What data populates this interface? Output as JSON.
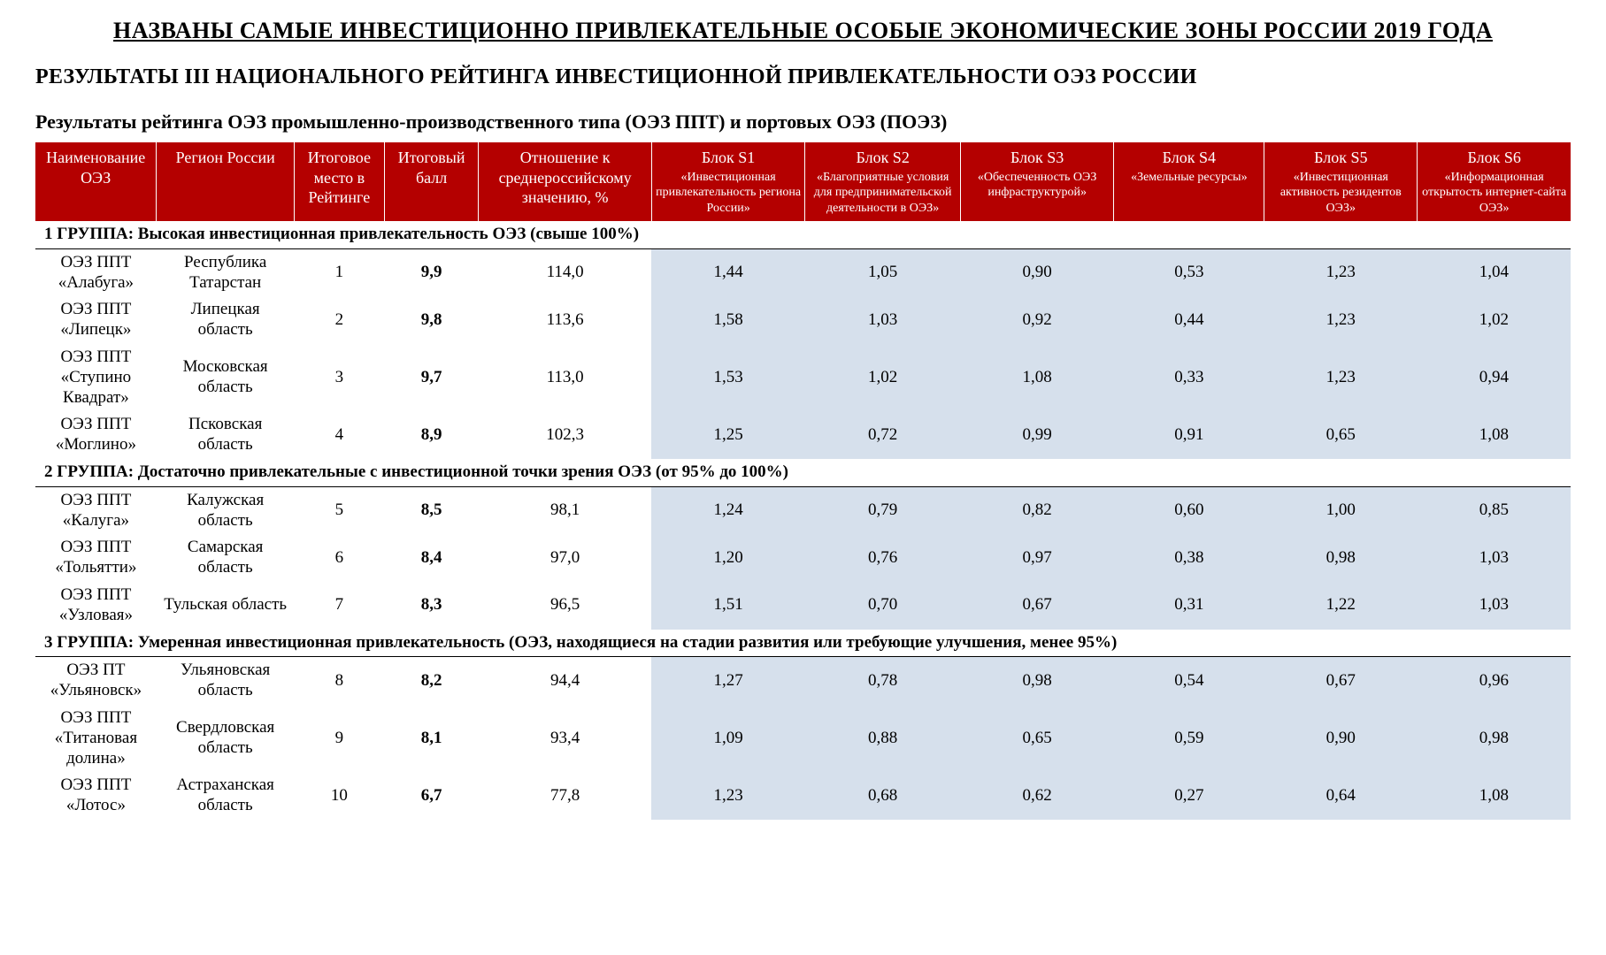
{
  "title_main": "НАЗВАНЫ САМЫЕ ИНВЕСТИЦИОННО ПРИВЛЕКАТЕЛЬНЫЕ ОСОБЫЕ ЭКОНОМИЧЕСКИЕ ЗОНЫ РОССИИ 2019 ГОДА",
  "subtitle": "РЕЗУЛЬТАТЫ III НАЦИОНАЛЬНОГО РЕЙТИНГА ИНВЕСТИЦИОННОЙ ПРИВЛЕКАТЕЛЬНОСТИ ОЭЗ РОССИИ",
  "section_title": "Результаты рейтинга ОЭЗ промышленно-производственного типа (ОЭЗ ППТ) и портовых ОЭЗ (ПОЭЗ)",
  "columns": [
    {
      "main": "Наименование ОЭЗ"
    },
    {
      "main": "Регион России"
    },
    {
      "main": "Итоговое место в Рейтинге"
    },
    {
      "main": "Итоговый балл"
    },
    {
      "main": "Отношение к среднероссийскому значению, %"
    },
    {
      "main": "Блок S1",
      "sub": "«Инвестиционная привлекательность региона России»"
    },
    {
      "main": "Блок S2",
      "sub": "«Благоприятные условия для предпринимательской деятельности в ОЭЗ»"
    },
    {
      "main": "Блок S3",
      "sub": "«Обеспеченность ОЭЗ инфраструктурой»"
    },
    {
      "main": "Блок S4",
      "sub": "«Земельные ресурсы»"
    },
    {
      "main": "Блок S5",
      "sub": "«Инвестиционная активность резидентов ОЭЗ»"
    },
    {
      "main": "Блок S6",
      "sub": "«Информационная открытость интернет-сайта ОЭЗ»"
    }
  ],
  "groups": [
    {
      "label": "1 ГРУППА:  Высокая инвестиционная привлекательность ОЭЗ (свыше 100%)",
      "rows": [
        {
          "name": "ОЭЗ ППТ «Алабуга»",
          "region": "Республика Татарстан",
          "place": "1",
          "score": "9,9",
          "ratio": "114,0",
          "s1": "1,44",
          "s2": "1,05",
          "s3": "0,90",
          "s4": "0,53",
          "s5": "1,23",
          "s6": "1,04"
        },
        {
          "name": "ОЭЗ ППТ «Липецк»",
          "region": "Липецкая область",
          "place": "2",
          "score": "9,8",
          "ratio": "113,6",
          "s1": "1,58",
          "s2": "1,03",
          "s3": "0,92",
          "s4": "0,44",
          "s5": "1,23",
          "s6": "1,02"
        },
        {
          "name": "ОЭЗ ППТ «Ступино Квадрат»",
          "region": "Московская область",
          "place": "3",
          "score": "9,7",
          "ratio": "113,0",
          "s1": "1,53",
          "s2": "1,02",
          "s3": "1,08",
          "s4": "0,33",
          "s5": "1,23",
          "s6": "0,94"
        },
        {
          "name": "ОЭЗ ППТ «Моглино»",
          "region": "Псковская область",
          "place": "4",
          "score": "8,9",
          "ratio": "102,3",
          "s1": "1,25",
          "s2": "0,72",
          "s3": "0,99",
          "s4": "0,91",
          "s5": "0,65",
          "s6": "1,08"
        }
      ]
    },
    {
      "label": "2 ГРУППА:  Достаточно привлекательные с инвестиционной точки зрения ОЭЗ (от 95% до 100%)",
      "rows": [
        {
          "name": "ОЭЗ ППТ «Калуга»",
          "region": "Калужская область",
          "place": "5",
          "score": "8,5",
          "ratio": "98,1",
          "s1": "1,24",
          "s2": "0,79",
          "s3": "0,82",
          "s4": "0,60",
          "s5": "1,00",
          "s6": "0,85"
        },
        {
          "name": "ОЭЗ ППТ «Тольятти»",
          "region": "Самарская область",
          "place": "6",
          "score": "8,4",
          "ratio": "97,0",
          "s1": "1,20",
          "s2": "0,76",
          "s3": "0,97",
          "s4": "0,38",
          "s5": "0,98",
          "s6": "1,03"
        },
        {
          "name": "ОЭЗ ППТ «Узловая»",
          "region": "Тульская область",
          "place": "7",
          "score": "8,3",
          "ratio": "96,5",
          "s1": "1,51",
          "s2": "0,70",
          "s3": "0,67",
          "s4": "0,31",
          "s5": "1,22",
          "s6": "1,03"
        }
      ]
    },
    {
      "label": "3 ГРУППА:  Умеренная инвестиционная привлекательность (ОЭЗ, находящиеся на стадии развития или требующие улучшения, менее 95%)",
      "rows": [
        {
          "name": "ОЭЗ ПТ «Ульяновск»",
          "region": "Ульяновская область",
          "place": "8",
          "score": "8,2",
          "ratio": "94,4",
          "s1": "1,27",
          "s2": "0,78",
          "s3": "0,98",
          "s4": "0,54",
          "s5": "0,67",
          "s6": "0,96"
        },
        {
          "name": "ОЭЗ ППТ «Титановая долина»",
          "region": "Свердловская область",
          "place": "9",
          "score": "8,1",
          "ratio": "93,4",
          "s1": "1,09",
          "s2": "0,88",
          "s3": "0,65",
          "s4": "0,59",
          "s5": "0,90",
          "s6": "0,98"
        },
        {
          "name": "ОЭЗ ППТ «Лотос»",
          "region": "Астраханская область",
          "place": "10",
          "score": "6,7",
          "ratio": "77,8",
          "s1": "1,23",
          "s2": "0,68",
          "s3": "0,62",
          "s4": "0,27",
          "s5": "0,64",
          "s6": "1,08"
        }
      ]
    }
  ],
  "style": {
    "header_bg": "#b40000",
    "header_fg": "#ffffff",
    "s_col_bg": "#d6e0ec",
    "body_bg": "#ffffff",
    "text_color": "#000000"
  }
}
